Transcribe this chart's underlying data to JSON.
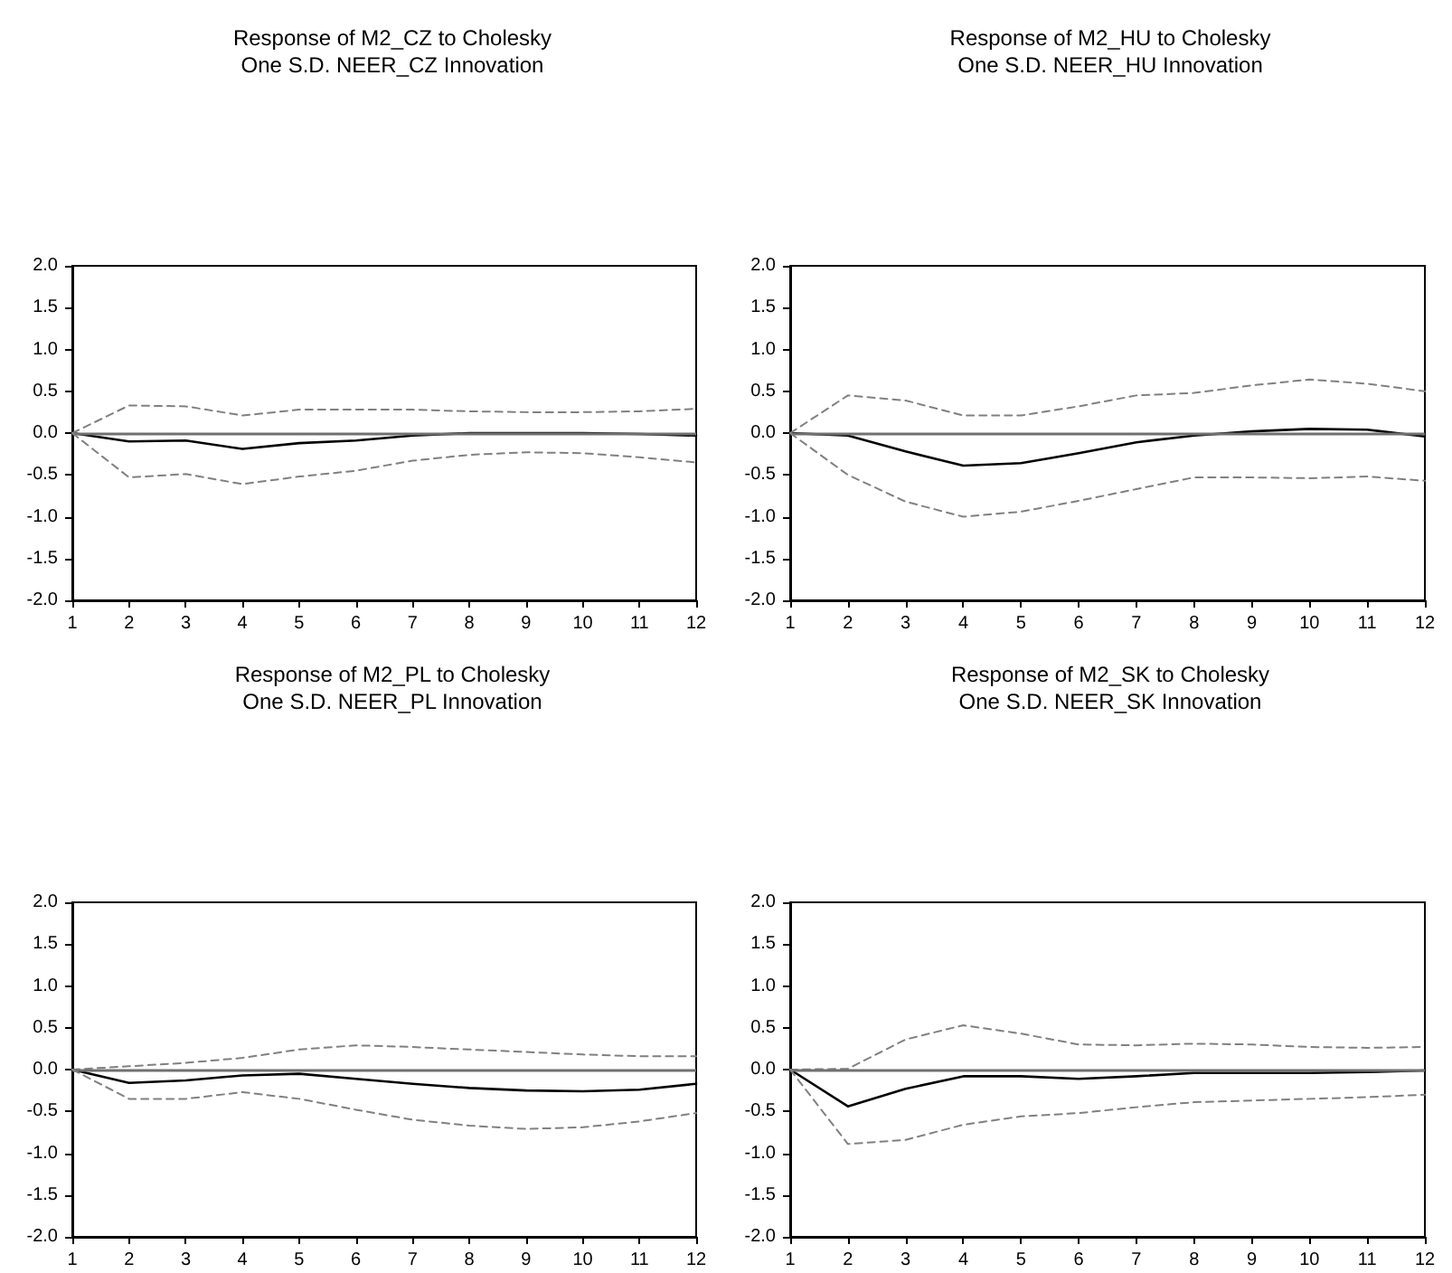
{
  "chart_data": [
    {
      "type": "line",
      "title": "Response of M2_CZ to Cholesky",
      "subtitle": "One S.D. NEER_CZ Innovation",
      "x": [
        1,
        2,
        3,
        4,
        5,
        6,
        7,
        8,
        9,
        10,
        11,
        12
      ],
      "marker": "none",
      "grid": false,
      "series": [
        {
          "color": "#000000",
          "line_style": "solid",
          "values": [
            0,
            -0.1,
            -0.09,
            -0.19,
            -0.12,
            -0.09,
            -0.03,
            0,
            0,
            0,
            -0.01,
            -0.03
          ]
        },
        {
          "color": "#808080",
          "line_style": "dashed",
          "values": [
            0,
            0.33,
            0.32,
            0.21,
            0.28,
            0.28,
            0.28,
            0.26,
            0.25,
            0.25,
            0.26,
            0.29
          ]
        },
        {
          "color": "#808080",
          "line_style": "dashed",
          "values": [
            0,
            -0.53,
            -0.49,
            -0.61,
            -0.52,
            -0.45,
            -0.33,
            -0.26,
            -0.23,
            -0.24,
            -0.29,
            -0.35
          ]
        }
      ],
      "xlim": [
        1,
        12
      ],
      "xticks": [
        1,
        2,
        3,
        4,
        5,
        6,
        7,
        8,
        9,
        10,
        11,
        12
      ],
      "ylim": [
        -2,
        2
      ],
      "yticks": [
        {
          "value": -2,
          "label": "-2.0"
        },
        {
          "value": -1.5,
          "label": "-1.5"
        },
        {
          "value": -1,
          "label": "-1.0"
        },
        {
          "value": -0.5,
          "label": "-0.5"
        },
        {
          "value": 0,
          "label": "0.0"
        },
        {
          "value": 0.5,
          "label": "0.5"
        },
        {
          "value": 1,
          "label": "1.0"
        },
        {
          "value": 1.5,
          "label": "1.5"
        },
        {
          "value": 2,
          "label": "2.0"
        }
      ],
      "ref_lines": [
        {
          "axis": "y",
          "value": 0,
          "color": "#707070"
        }
      ]
    },
    {
      "type": "line",
      "title": "Response of M2_HU to Cholesky",
      "subtitle": "One S.D. NEER_HU Innovation",
      "x": [
        1,
        2,
        3,
        4,
        5,
        6,
        7,
        8,
        9,
        10,
        11,
        12
      ],
      "marker": "none",
      "grid": false,
      "series": [
        {
          "color": "#000000",
          "line_style": "solid",
          "values": [
            0,
            -0.03,
            -0.22,
            -0.39,
            -0.36,
            -0.24,
            -0.11,
            -0.03,
            0.02,
            0.05,
            0.04,
            -0.04
          ]
        },
        {
          "color": "#808080",
          "line_style": "dashed",
          "values": [
            0,
            0.45,
            0.39,
            0.21,
            0.21,
            0.32,
            0.45,
            0.48,
            0.57,
            0.64,
            0.59,
            0.5
          ]
        },
        {
          "color": "#808080",
          "line_style": "dashed",
          "values": [
            0,
            -0.5,
            -0.82,
            -1.0,
            -0.94,
            -0.81,
            -0.67,
            -0.53,
            -0.53,
            -0.54,
            -0.52,
            -0.57
          ]
        }
      ],
      "xlim": [
        1,
        12
      ],
      "xticks": [
        1,
        2,
        3,
        4,
        5,
        6,
        7,
        8,
        9,
        10,
        11,
        12
      ],
      "ylim": [
        -2,
        2
      ],
      "yticks": [
        {
          "value": -2,
          "label": "-2.0"
        },
        {
          "value": -1.5,
          "label": "-1.5"
        },
        {
          "value": -1,
          "label": "-1.0"
        },
        {
          "value": -0.5,
          "label": "-0.5"
        },
        {
          "value": 0,
          "label": "0.0"
        },
        {
          "value": 0.5,
          "label": "0.5"
        },
        {
          "value": 1,
          "label": "1.0"
        },
        {
          "value": 1.5,
          "label": "1.5"
        },
        {
          "value": 2,
          "label": "2.0"
        }
      ],
      "ref_lines": [
        {
          "axis": "y",
          "value": 0,
          "color": "#707070"
        }
      ]
    },
    {
      "type": "line",
      "title": "Response of M2_PL to Cholesky",
      "subtitle": "One S.D. NEER_PL Innovation",
      "x": [
        1,
        2,
        3,
        4,
        5,
        6,
        7,
        8,
        9,
        10,
        11,
        12
      ],
      "marker": "none",
      "grid": false,
      "series": [
        {
          "color": "#000000",
          "line_style": "solid",
          "values": [
            0,
            -0.16,
            -0.13,
            -0.07,
            -0.05,
            -0.11,
            -0.17,
            -0.22,
            -0.25,
            -0.26,
            -0.24,
            -0.17
          ]
        },
        {
          "color": "#808080",
          "line_style": "dashed",
          "values": [
            0,
            0.04,
            0.08,
            0.14,
            0.24,
            0.29,
            0.27,
            0.24,
            0.21,
            0.18,
            0.16,
            0.16
          ]
        },
        {
          "color": "#808080",
          "line_style": "dashed",
          "values": [
            0,
            -0.35,
            -0.35,
            -0.27,
            -0.35,
            -0.48,
            -0.6,
            -0.67,
            -0.71,
            -0.69,
            -0.62,
            -0.52
          ]
        }
      ],
      "xlim": [
        1,
        12
      ],
      "xticks": [
        1,
        2,
        3,
        4,
        5,
        6,
        7,
        8,
        9,
        10,
        11,
        12
      ],
      "ylim": [
        -2,
        2
      ],
      "yticks": [
        {
          "value": -2,
          "label": "-2.0"
        },
        {
          "value": -1.5,
          "label": "-1.5"
        },
        {
          "value": -1,
          "label": "-1.0"
        },
        {
          "value": -0.5,
          "label": "-0.5"
        },
        {
          "value": 0,
          "label": "0.0"
        },
        {
          "value": 0.5,
          "label": "0.5"
        },
        {
          "value": 1,
          "label": "1.0"
        },
        {
          "value": 1.5,
          "label": "1.5"
        },
        {
          "value": 2,
          "label": "2.0"
        }
      ],
      "ref_lines": [
        {
          "axis": "y",
          "value": 0,
          "color": "#707070"
        }
      ]
    },
    {
      "type": "line",
      "title": "Response of M2_SK to Cholesky",
      "subtitle": "One S.D. NEER_SK Innovation",
      "x": [
        1,
        2,
        3,
        4,
        5,
        6,
        7,
        8,
        9,
        10,
        11,
        12
      ],
      "marker": "none",
      "grid": false,
      "series": [
        {
          "color": "#000000",
          "line_style": "solid",
          "values": [
            0,
            -0.44,
            -0.23,
            -0.08,
            -0.08,
            -0.11,
            -0.08,
            -0.04,
            -0.04,
            -0.04,
            -0.03,
            -0.01
          ]
        },
        {
          "color": "#808080",
          "line_style": "dashed",
          "values": [
            0,
            0.01,
            0.36,
            0.53,
            0.43,
            0.3,
            0.29,
            0.31,
            0.3,
            0.27,
            0.26,
            0.27
          ]
        },
        {
          "color": "#808080",
          "line_style": "dashed",
          "values": [
            0,
            -0.89,
            -0.84,
            -0.66,
            -0.56,
            -0.52,
            -0.45,
            -0.39,
            -0.37,
            -0.35,
            -0.33,
            -0.3
          ]
        }
      ],
      "xlim": [
        1,
        12
      ],
      "xticks": [
        1,
        2,
        3,
        4,
        5,
        6,
        7,
        8,
        9,
        10,
        11,
        12
      ],
      "ylim": [
        -2,
        2
      ],
      "yticks": [
        {
          "value": -2,
          "label": "-2.0"
        },
        {
          "value": -1.5,
          "label": "-1.5"
        },
        {
          "value": -1,
          "label": "-1.0"
        },
        {
          "value": -0.5,
          "label": "-0.5"
        },
        {
          "value": 0,
          "label": "0.0"
        },
        {
          "value": 0.5,
          "label": "0.5"
        },
        {
          "value": 1,
          "label": "1.0"
        },
        {
          "value": 1.5,
          "label": "1.5"
        },
        {
          "value": 2,
          "label": "2.0"
        }
      ],
      "ref_lines": [
        {
          "axis": "y",
          "value": 0,
          "color": "#707070"
        }
      ]
    }
  ]
}
